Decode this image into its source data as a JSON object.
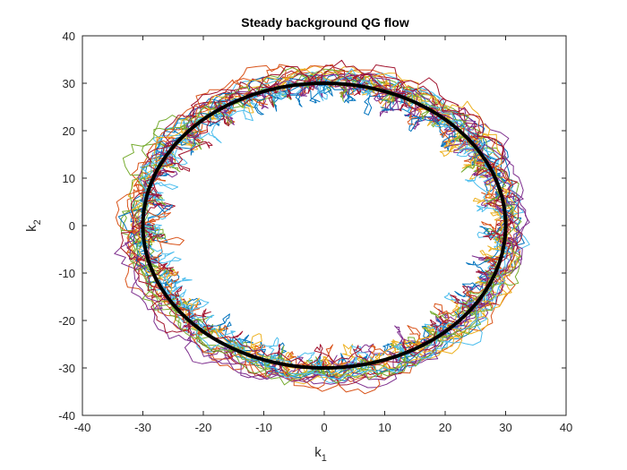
{
  "chart_data": {
    "type": "line",
    "title": "Steady background QG flow",
    "xlabel": "k",
    "xlabel_subscript": "1",
    "ylabel": "k",
    "ylabel_subscript": "2",
    "xlim": [
      -40,
      40
    ],
    "ylim": [
      -40,
      40
    ],
    "xticks": [
      -40,
      -30,
      -20,
      -10,
      0,
      10,
      20,
      30,
      40
    ],
    "yticks": [
      -40,
      -30,
      -20,
      -10,
      0,
      10,
      20,
      30,
      40
    ],
    "grid": false,
    "box": true,
    "reference_curve": {
      "shape": "circle",
      "center": [
        0,
        0
      ],
      "radius": 30,
      "color": "#000000"
    },
    "trajectories": {
      "description_kind": "noisy orbits around radius-30 circle",
      "mean_radius": 30,
      "spread_radius": [
        22,
        38
      ],
      "colors": [
        "#0072BD",
        "#D95319",
        "#EDB120",
        "#7E2F8E",
        "#77AC30",
        "#4DBEEE",
        "#A2142F"
      ],
      "count": 14
    }
  }
}
